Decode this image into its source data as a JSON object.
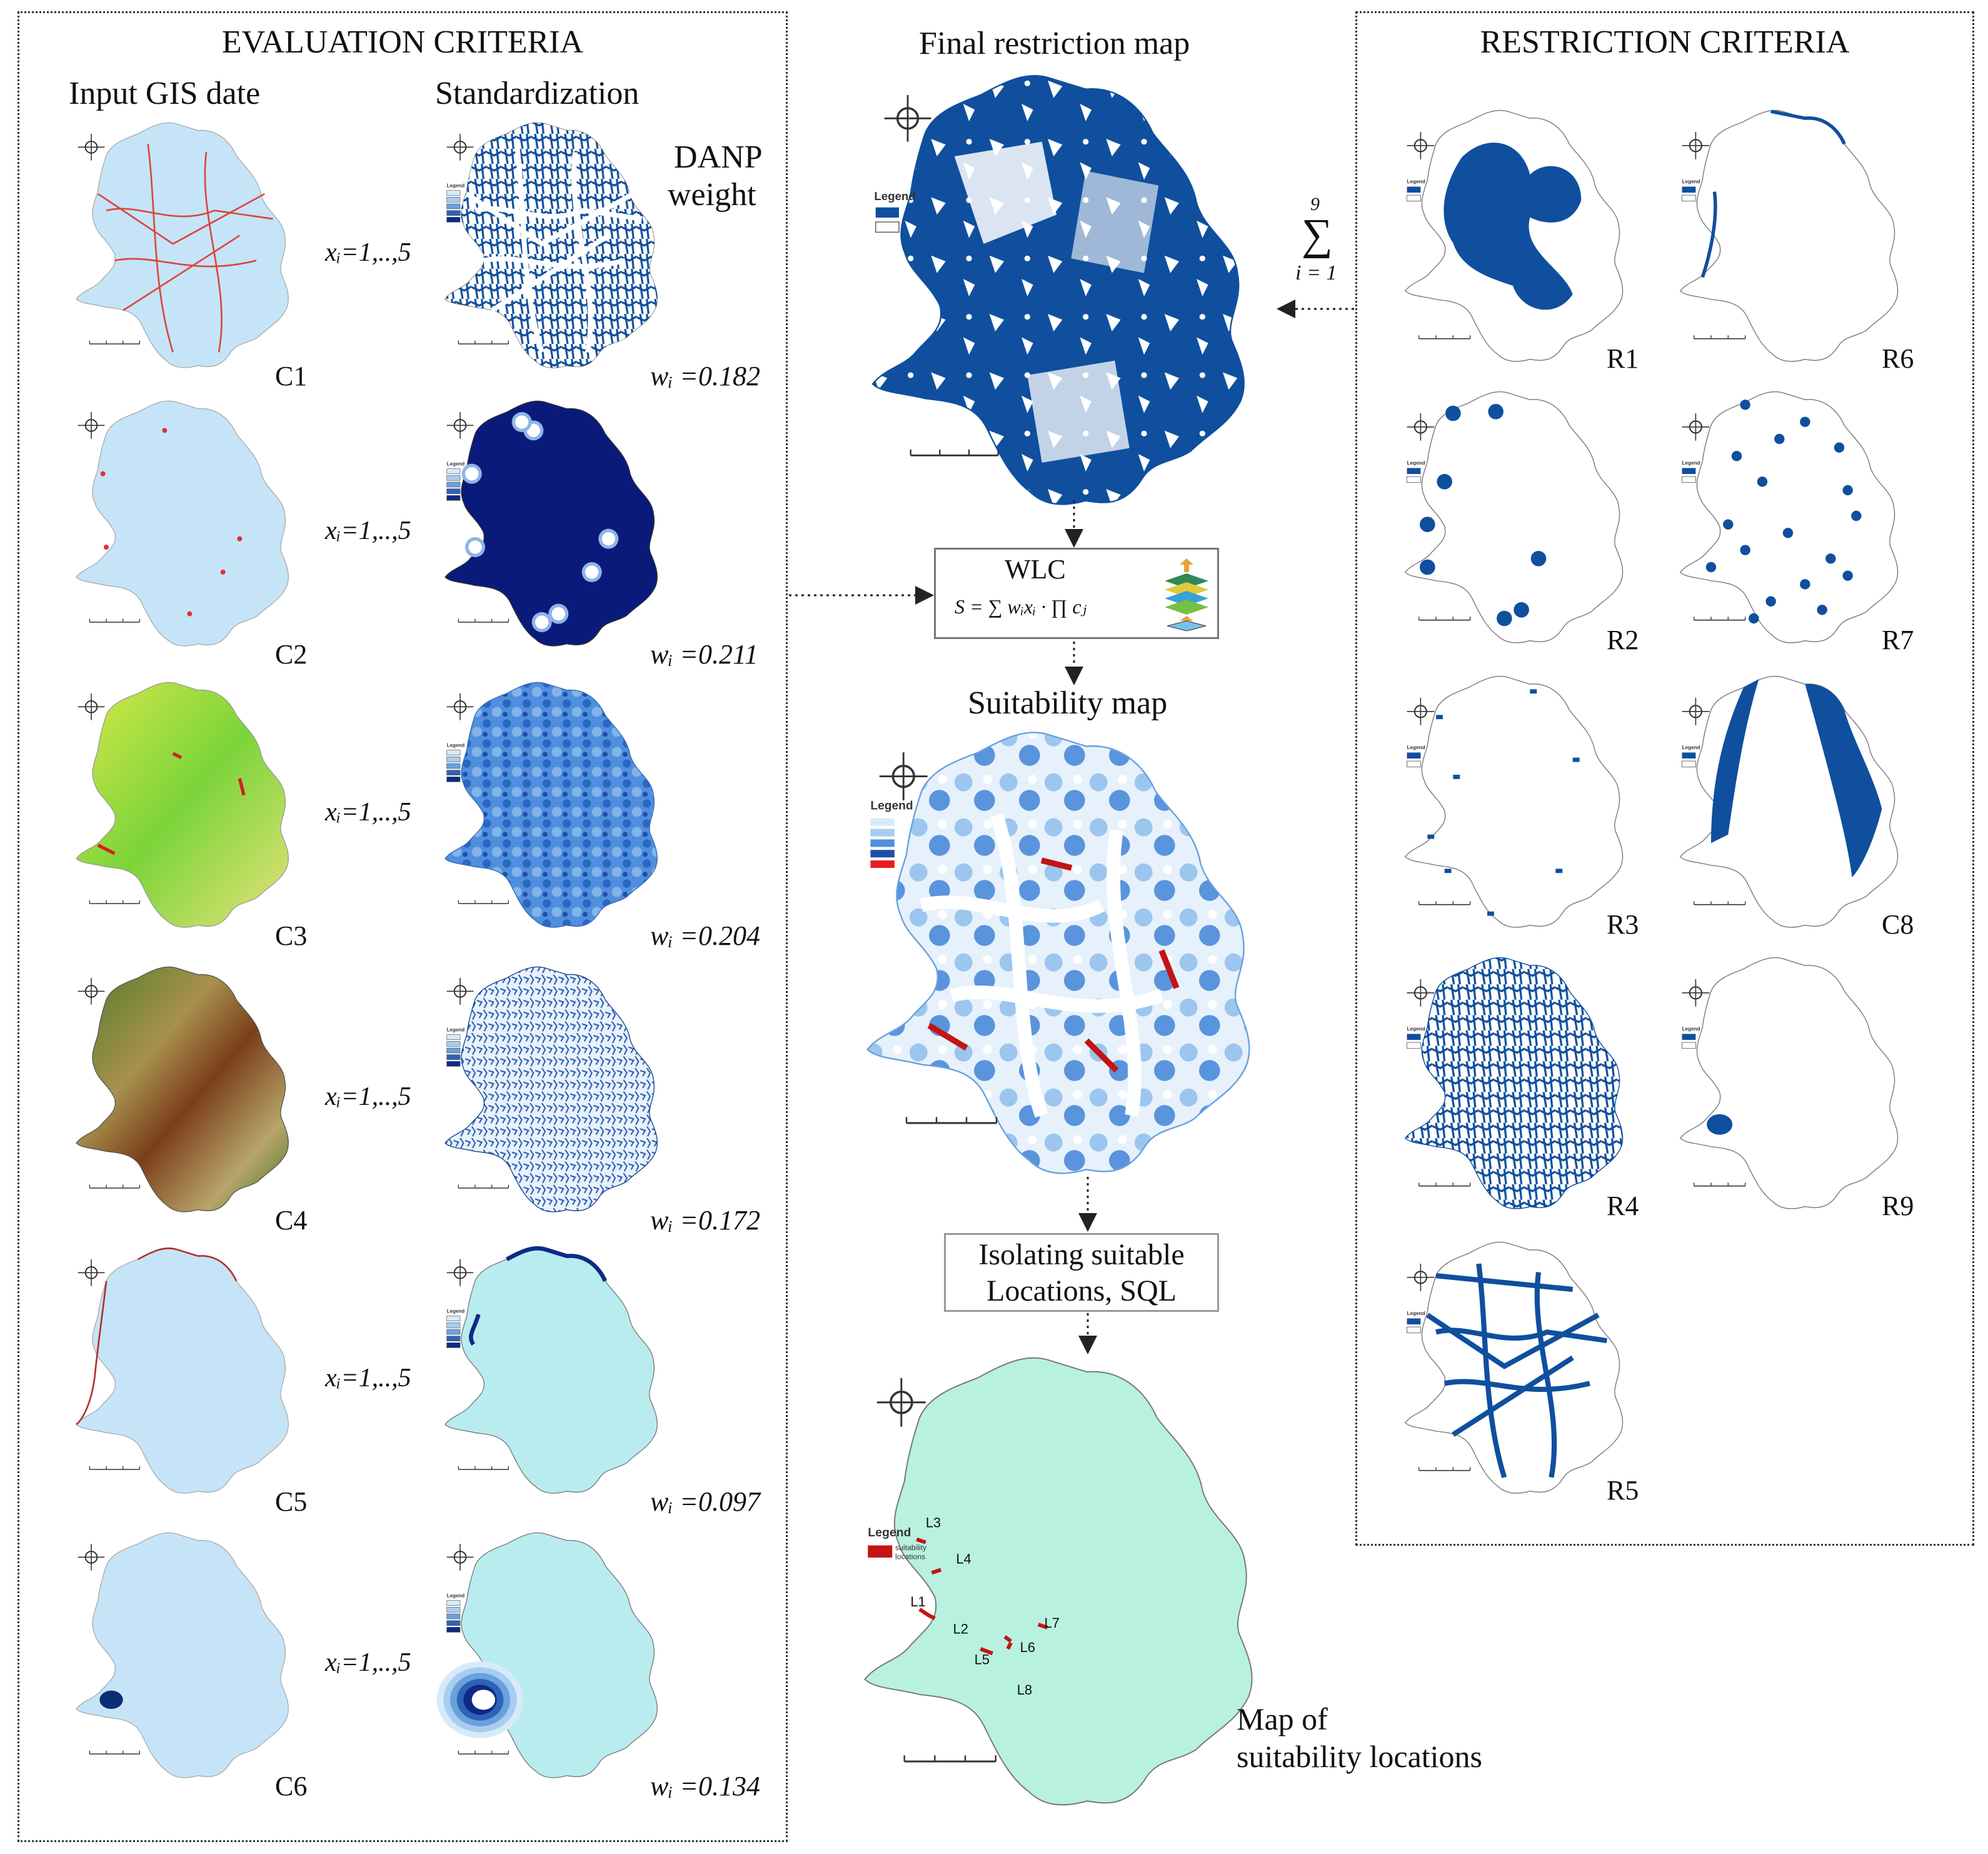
{
  "evaluation": {
    "title": "EVALUATION CRITERIA",
    "col_input": "Input GIS date",
    "col_std": "Standardization",
    "danp": "DANP",
    "weight": "weight",
    "rows": [
      {
        "code": "C1",
        "range": "xᵢ=1,..,5",
        "weight": "wᵢ =0.182",
        "input": "roads",
        "std": "roads"
      },
      {
        "code": "C2",
        "range": "xᵢ=1,..,5",
        "weight": "wᵢ =0.211",
        "input": "dots",
        "std": "dots"
      },
      {
        "code": "C3",
        "range": "xᵢ=1,..,5",
        "weight": "wᵢ =0.204",
        "input": "landuse",
        "std": "mottled"
      },
      {
        "code": "C4",
        "range": "xᵢ=1,..,5",
        "weight": "wᵢ =0.172",
        "input": "dem",
        "std": "speckle"
      },
      {
        "code": "C5",
        "range": "xᵢ=1,..,5",
        "weight": "wᵢ =0.097",
        "input": "border",
        "std": "border"
      },
      {
        "code": "C6",
        "range": "xᵢ=1,..,5",
        "weight": "wᵢ =0.134",
        "input": "blob",
        "std": "rings"
      }
    ]
  },
  "center": {
    "final_title": "Final restriction map",
    "wlc_title": "WLC",
    "wlc_formula": "S = ∑ wᵢxᵢ · ∏ cⱼ",
    "suit_title": "Suitability map",
    "isolate_line1": "Isolating suitable",
    "isolate_line2": "Locations, SQL",
    "map_line1": "Map of",
    "map_line2": "suitability locations",
    "legend_word": "Legend",
    "suit_loc_line1": "suitability",
    "suit_loc_line2": "locations",
    "locations": [
      "L1",
      "L2",
      "L3",
      "L4",
      "L5",
      "L6",
      "L7",
      "L8"
    ]
  },
  "restriction": {
    "title": "RESTRICTION CRITERIA",
    "sum_top": "9",
    "sum_sym": "∑",
    "sum_bottom": "i = 1",
    "items": [
      "R1",
      "R6",
      "R2",
      "R7",
      "R3",
      "C8",
      "R4",
      "R9",
      "R5"
    ]
  },
  "colors": {
    "land_light": "#c6e4f7",
    "deep_blue": "#0f4f9e",
    "navy": "#0a1a7a",
    "road_red": "#d9473b",
    "mint": "#b8f1e0",
    "loc_red": "#c41414"
  }
}
